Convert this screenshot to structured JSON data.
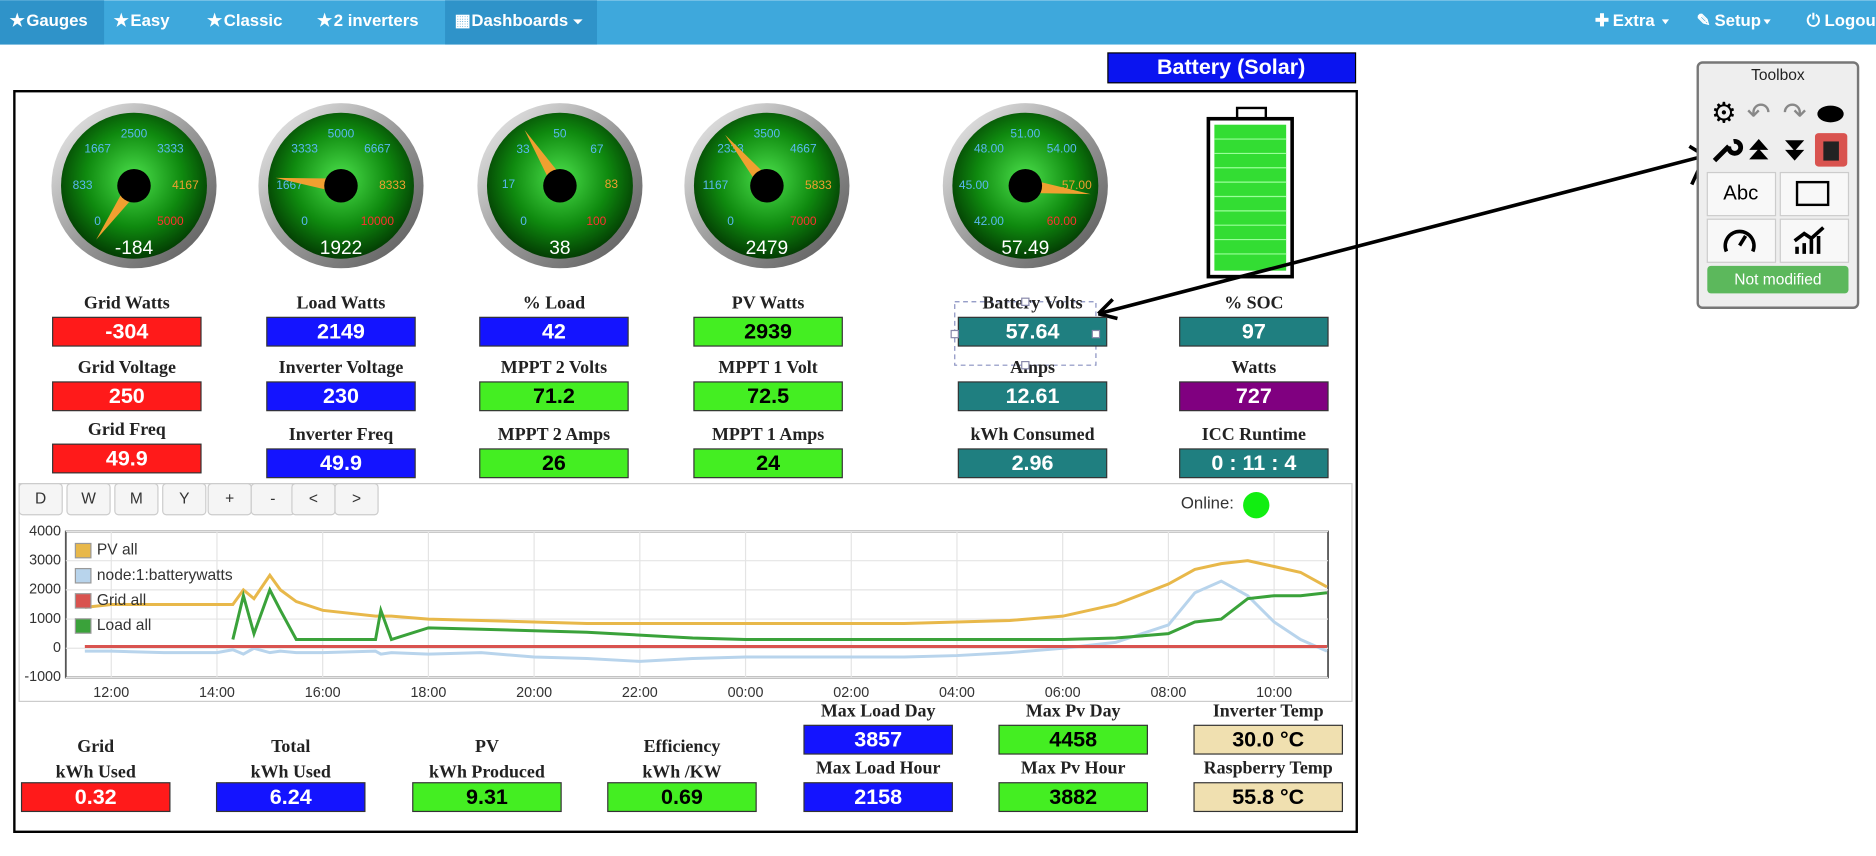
{
  "nav": {
    "left": [
      "Gauges",
      "Easy",
      "Classic",
      "2 inverters",
      "Dashboards"
    ],
    "right": [
      "Extra",
      "Setup",
      "Logout"
    ]
  },
  "title": "Battery (Solar)",
  "gauges": [
    {
      "value": -184,
      "ticks": [
        0,
        833,
        1667,
        2500,
        3333,
        4167,
        5000
      ]
    },
    {
      "value": 1922,
      "ticks": [
        0,
        1667,
        3333,
        5000,
        6667,
        8333,
        10000
      ]
    },
    {
      "value": 38,
      "ticks": [
        0,
        17,
        33,
        50,
        67,
        83,
        100
      ]
    },
    {
      "value": 2479,
      "ticks": [
        0,
        1167,
        2333,
        3500,
        4667,
        5833,
        7000
      ]
    },
    {
      "value": 57.49,
      "ticks": [
        {
          "value": 42,
          "label": "42.00"
        },
        {
          "value": 45,
          "label": "45.00"
        },
        {
          "value": 48,
          "label": "48.00"
        },
        {
          "value": 51,
          "label": "51.00"
        },
        {
          "value": 54,
          "label": "54.00"
        },
        {
          "value": 57,
          "label": "57.00"
        },
        {
          "value": 60,
          "label": "60.00"
        }
      ]
    }
  ],
  "tiles": [
    {
      "label": "Grid Watts",
      "value": "-304",
      "color": "#ff1a1a",
      "text_color": "#fff"
    },
    {
      "label": "Grid Voltage",
      "value": "250",
      "color": "#ff1a1a",
      "text_color": "#fff"
    },
    {
      "label": "Grid Freq",
      "value": "49.9",
      "color": "#ff1a1a",
      "text_color": "#fff"
    },
    {
      "label": "Load Watts",
      "value": "2149",
      "color": "#1414ff",
      "text_color": "#fff"
    },
    {
      "label": "Inverter Voltage",
      "value": "230",
      "color": "#1414ff",
      "text_color": "#fff"
    },
    {
      "label": "Inverter Freq",
      "value": "49.9",
      "color": "#1414ff",
      "text_color": "#fff"
    },
    {
      "label": "% Load",
      "value": "42",
      "color": "#1414ff",
      "text_color": "#fff"
    },
    {
      "label": "MPPT 2 Volts",
      "value": "71.2",
      "color": "#44ee22",
      "text_color": "#000"
    },
    {
      "label": "MPPT 2 Amps",
      "value": "26",
      "color": "#44ee22",
      "text_color": "#000"
    },
    {
      "label": "PV Watts",
      "value": "2939",
      "color": "#44ee22",
      "text_color": "#000"
    },
    {
      "label": "MPPT 1 Volt",
      "value": "72.5",
      "color": "#44ee22",
      "text_color": "#000"
    },
    {
      "label": "MPPT 1 Amps",
      "value": "24",
      "color": "#44ee22",
      "text_color": "#000"
    },
    {
      "label": "Battery Volts",
      "value": "57.64",
      "color": "#1f7f80",
      "text_color": "#fff"
    },
    {
      "label": "Amps",
      "value": "12.61",
      "color": "#1f7f80",
      "text_color": "#fff"
    },
    {
      "label": "kWh Consumed",
      "value": "2.96",
      "color": "#1f7f80",
      "text_color": "#fff"
    },
    {
      "label": "% SOC",
      "value": "97",
      "color": "#1f7f80",
      "text_color": "#fff"
    },
    {
      "label": "Watts",
      "value": "727",
      "color": "#800080",
      "text_color": "#fff"
    },
    {
      "label": "ICC Runtime",
      "value": "0 : 11 : 4",
      "color": "#1f7f80",
      "text_color": "#fff"
    }
  ],
  "chart_data": {
    "type": "line",
    "buttons": [
      "D",
      "W",
      "M",
      "Y",
      "+",
      "-",
      "<",
      ">"
    ],
    "online_label": "Online:",
    "x": [
      11.5,
      12,
      13,
      14,
      14.3,
      14.5,
      14.7,
      15,
      15.2,
      15.5,
      16,
      17,
      17.1,
      17.3,
      18,
      19,
      20,
      21,
      22,
      23,
      24,
      25,
      26,
      27,
      28,
      29,
      30,
      31,
      32,
      32.5,
      33,
      33.5,
      34,
      34.5,
      35
    ],
    "series": [
      {
        "name": "PV all",
        "color": "#e8b84a",
        "values": [
          1400,
          1500,
          1500,
          1500,
          1500,
          2000,
          1700,
          2500,
          2000,
          1600,
          1300,
          1100,
          1100,
          1100,
          1000,
          950,
          900,
          850,
          850,
          850,
          850,
          850,
          850,
          850,
          900,
          950,
          1100,
          1500,
          2200,
          2700,
          2900,
          3000,
          2800,
          2600,
          2100
        ]
      },
      {
        "name": "node:1:batterywatts",
        "color": "#b8d4ec",
        "values": [
          -100,
          -100,
          -150,
          -150,
          -50,
          -200,
          0,
          -150,
          -100,
          -150,
          -150,
          -100,
          -200,
          -150,
          -200,
          -150,
          -300,
          -350,
          -450,
          -350,
          -300,
          -300,
          -300,
          -300,
          -250,
          -150,
          0,
          200,
          800,
          1900,
          2300,
          1800,
          900,
          300,
          -100
        ]
      },
      {
        "name": "Grid all",
        "color": "#d9534f",
        "values": [
          60,
          60,
          60,
          60,
          60,
          60,
          60,
          60,
          60,
          60,
          60,
          60,
          60,
          60,
          60,
          60,
          60,
          60,
          60,
          60,
          60,
          60,
          60,
          60,
          60,
          60,
          60,
          60,
          60,
          60,
          60,
          60,
          60,
          60,
          60
        ]
      },
      {
        "name": "Load all",
        "color": "#3aa23a",
        "values": [
          null,
          null,
          null,
          null,
          300,
          1800,
          500,
          2000,
          1300,
          300,
          300,
          300,
          1300,
          300,
          700,
          650,
          600,
          550,
          450,
          350,
          300,
          300,
          300,
          300,
          300,
          300,
          300,
          350,
          500,
          900,
          1000,
          1700,
          1800,
          1800,
          1900
        ]
      }
    ],
    "xlim": [
      11.14,
      35.02
    ],
    "xticks": [
      {
        "value": 12,
        "label": "12:00"
      },
      {
        "value": 14,
        "label": "14:00"
      },
      {
        "value": 16,
        "label": "16:00"
      },
      {
        "value": 18,
        "label": "18:00"
      },
      {
        "value": 20,
        "label": "20:00"
      },
      {
        "value": 22,
        "label": "22:00"
      },
      {
        "value": 24,
        "label": "00:00"
      },
      {
        "value": 26,
        "label": "02:00"
      },
      {
        "value": 28,
        "label": "04:00"
      },
      {
        "value": 30,
        "label": "06:00"
      },
      {
        "value": 32,
        "label": "08:00"
      },
      {
        "value": 34,
        "label": "10:00"
      }
    ],
    "ylim": [
      -1000,
      4000
    ],
    "yticks": [
      4000,
      3000,
      2000,
      1000,
      0,
      -1000
    ],
    "grid": true
  },
  "summary": [
    {
      "label": [
        "Grid",
        "kWh Used"
      ],
      "value": "0.32",
      "color": "#ff1a1a",
      "text_color": "#fff"
    },
    {
      "label": [
        "Total",
        "kWh Used"
      ],
      "value": "6.24",
      "color": "#1414ff",
      "text_color": "#fff"
    },
    {
      "label": [
        "PV",
        "kWh Produced"
      ],
      "value": "9.31",
      "color": "#44ee22",
      "text_color": "#000"
    },
    {
      "label": [
        "Efficiency",
        "kWh /KW"
      ],
      "value": "0.69",
      "color": "#44ee22",
      "text_color": "#000"
    },
    {
      "label": [
        "Max Load Day"
      ],
      "value": "3857",
      "color": "#1414ff",
      "text_color": "#fff"
    },
    {
      "label": [
        "Max Load Hour"
      ],
      "value": "2158",
      "color": "#1414ff",
      "text_color": "#fff"
    },
    {
      "label": [
        "Max Pv Day"
      ],
      "value": "4458",
      "color": "#44ee22",
      "text_color": "#000"
    },
    {
      "label": [
        "Max Pv Hour"
      ],
      "value": "3882",
      "color": "#44ee22",
      "text_color": "#000"
    },
    {
      "label": [
        "Inverter Temp"
      ],
      "value": "30.0 °C",
      "color": "#f0e0b0",
      "text_color": "#000"
    },
    {
      "label": [
        "Raspberry Temp"
      ],
      "value": "55.8 °C",
      "color": "#f0e0b0",
      "text_color": "#000"
    }
  ],
  "toolbox": {
    "title": "Toolbox",
    "text_tool": "Abc",
    "status": "Not modified"
  }
}
